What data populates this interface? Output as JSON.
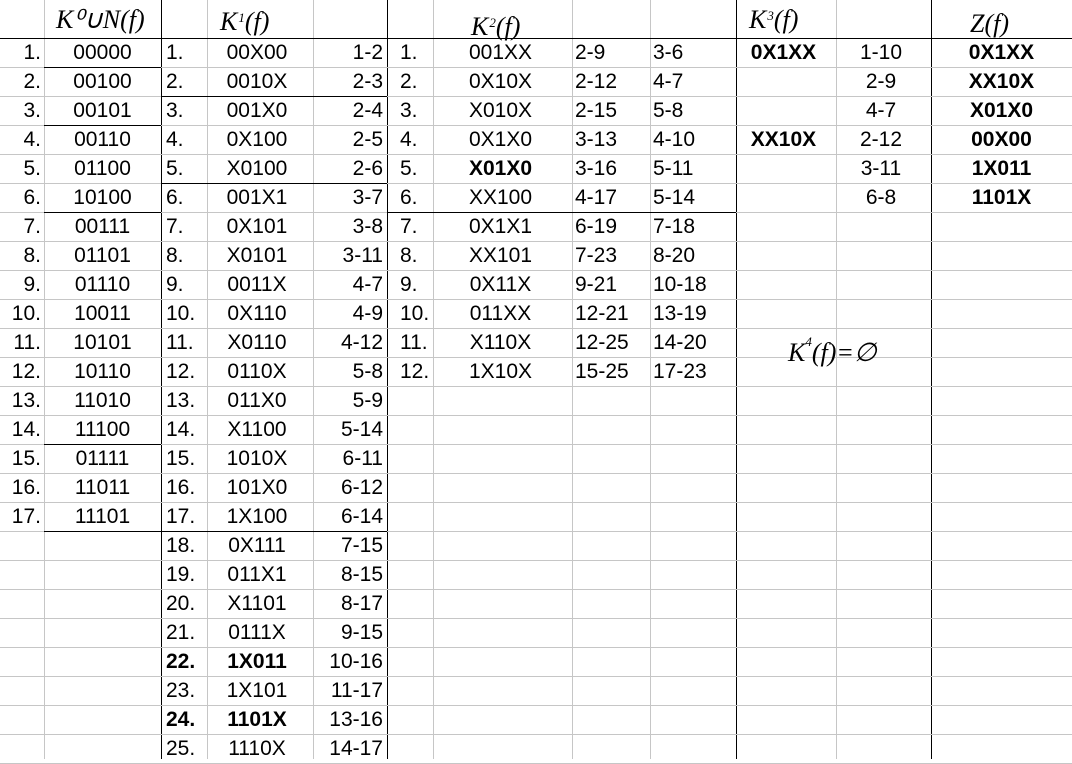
{
  "headers": {
    "k0": "K⁰∪N(f)",
    "k1_main": "K",
    "k1_sup": "1",
    "k1_arg": "(f)",
    "k2_main": "K",
    "k2_sup": "2",
    "k2_arg": "(f)",
    "k3_main": "K",
    "k3_sup": "3",
    "k3_arg": "(f)",
    "z": "Z(f)",
    "k4_main": "K",
    "k4_sup": "4",
    "k4_rest": "(f)=∅"
  },
  "k0": {
    "rows": [
      {
        "idx": "1.",
        "val": "00000"
      },
      {
        "idx": "2.",
        "val": "00100"
      },
      {
        "idx": "3.",
        "val": "00101"
      },
      {
        "idx": "4.",
        "val": "00110"
      },
      {
        "idx": "5.",
        "val": "01100"
      },
      {
        "idx": "6.",
        "val": "10100"
      },
      {
        "idx": "7.",
        "val": "00111"
      },
      {
        "idx": "8.",
        "val": "01101"
      },
      {
        "idx": "9.",
        "val": "01110"
      },
      {
        "idx": "10.",
        "val": "10011"
      },
      {
        "idx": "11.",
        "val": "10101"
      },
      {
        "idx": "12.",
        "val": "10110"
      },
      {
        "idx": "13.",
        "val": "11010"
      },
      {
        "idx": "14.",
        "val": "11100"
      },
      {
        "idx": "15.",
        "val": "01111"
      },
      {
        "idx": "16.",
        "val": "11011"
      },
      {
        "idx": "17.",
        "val": "11101"
      }
    ]
  },
  "k1": {
    "rows": [
      {
        "idx": "1.",
        "val": "00X00",
        "pair": "1-2",
        "bold": false
      },
      {
        "idx": "2.",
        "val": "0010X",
        "pair": "2-3",
        "bold": false
      },
      {
        "idx": "3.",
        "val": "001X0",
        "pair": "2-4",
        "bold": false
      },
      {
        "idx": "4.",
        "val": "0X100",
        "pair": "2-5",
        "bold": false
      },
      {
        "idx": "5.",
        "val": "X0100",
        "pair": "2-6",
        "bold": false
      },
      {
        "idx": "6.",
        "val": "001X1",
        "pair": "3-7",
        "bold": false
      },
      {
        "idx": "7.",
        "val": "0X101",
        "pair": "3-8",
        "bold": false
      },
      {
        "idx": "8.",
        "val": "X0101",
        "pair": "3-11",
        "bold": false
      },
      {
        "idx": "9.",
        "val": "0011X",
        "pair": "4-7",
        "bold": false
      },
      {
        "idx": "10.",
        "val": "0X110",
        "pair": "4-9",
        "bold": false
      },
      {
        "idx": "11.",
        "val": "X0110",
        "pair": "4-12",
        "bold": false
      },
      {
        "idx": "12.",
        "val": "0110X",
        "pair": "5-8",
        "bold": false
      },
      {
        "idx": "13.",
        "val": "011X0",
        "pair": "5-9",
        "bold": false
      },
      {
        "idx": "14.",
        "val": "X1100",
        "pair": "5-14",
        "bold": false
      },
      {
        "idx": "15.",
        "val": "1010X",
        "pair": "6-11",
        "bold": false
      },
      {
        "idx": "16.",
        "val": "101X0",
        "pair": "6-12",
        "bold": false
      },
      {
        "idx": "17.",
        "val": "1X100",
        "pair": "6-14",
        "bold": false
      },
      {
        "idx": "18.",
        "val": "0X111",
        "pair": "7-15",
        "bold": false
      },
      {
        "idx": "19.",
        "val": "011X1",
        "pair": "8-15",
        "bold": false
      },
      {
        "idx": "20.",
        "val": "X1101",
        "pair": "8-17",
        "bold": false
      },
      {
        "idx": "21.",
        "val": "0111X",
        "pair": "9-15",
        "bold": false
      },
      {
        "idx": "22.",
        "val": "1X011",
        "pair": "10-16",
        "bold": true
      },
      {
        "idx": "23.",
        "val": "1X101",
        "pair": "11-17",
        "bold": false
      },
      {
        "idx": "24.",
        "val": "1101X",
        "pair": "13-16",
        "bold": true
      },
      {
        "idx": "25.",
        "val": "1110X",
        "pair": "14-17",
        "bold": false
      }
    ]
  },
  "k2": {
    "rows": [
      {
        "idx": "1.",
        "val": "001XX",
        "p1": "2-9",
        "p2": "3-6",
        "bold": false
      },
      {
        "idx": "2.",
        "val": "0X10X",
        "p1": "2-12",
        "p2": "4-7",
        "bold": false
      },
      {
        "idx": "3.",
        "val": "X010X",
        "p1": "2-15",
        "p2": "5-8",
        "bold": false
      },
      {
        "idx": "4.",
        "val": "0X1X0",
        "p1": "3-13",
        "p2": "4-10",
        "bold": false
      },
      {
        "idx": "5.",
        "val": "X01X0",
        "p1": "3-16",
        "p2": "5-11",
        "bold": true
      },
      {
        "idx": "6.",
        "val": "XX100",
        "p1": "4-17",
        "p2": "5-14",
        "bold": false
      },
      {
        "idx": "7.",
        "val": "0X1X1",
        "p1": "6-19",
        "p2": "7-18",
        "bold": false
      },
      {
        "idx": "8.",
        "val": "XX101",
        "p1": "7-23",
        "p2": "8-20",
        "bold": false
      },
      {
        "idx": "9.",
        "val": "0X11X",
        "p1": "9-21",
        "p2": "10-18",
        "bold": false
      },
      {
        "idx": "10.",
        "val": "011XX",
        "p1": "12-21",
        "p2": "13-19",
        "bold": false
      },
      {
        "idx": "11.",
        "val": "X110X",
        "p1": "12-25",
        "p2": "14-20",
        "bold": false
      },
      {
        "idx": "12.",
        "val": "1X10X",
        "p1": "15-25",
        "p2": "17-23",
        "bold": false
      }
    ]
  },
  "k3": {
    "rows": [
      {
        "val": "0X1XX",
        "pair": "1-10"
      },
      {
        "val": "",
        "pair": "2-9"
      },
      {
        "val": "",
        "pair": "4-7"
      },
      {
        "val": "XX10X",
        "pair": "2-12"
      },
      {
        "val": "",
        "pair": "3-11"
      },
      {
        "val": "",
        "pair": "6-8"
      }
    ]
  },
  "z": {
    "rows": [
      "0X1XX",
      "XX10X",
      "X01X0",
      "00X00",
      "1X011",
      "1101X"
    ]
  }
}
